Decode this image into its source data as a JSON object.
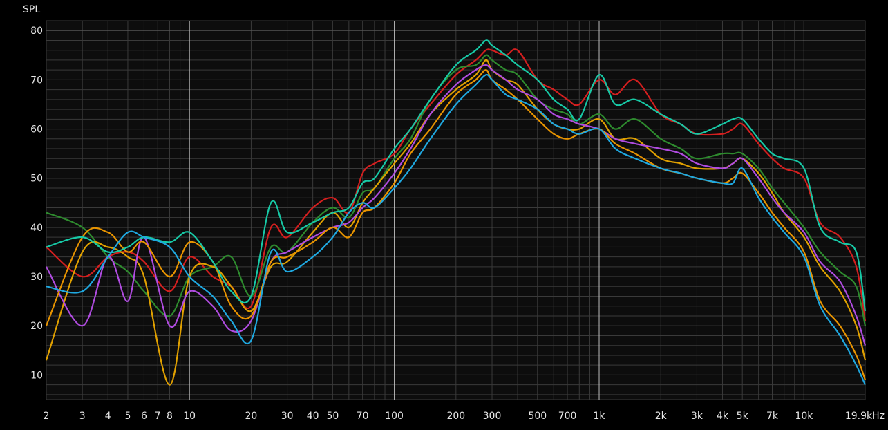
{
  "chart_data": {
    "type": "line",
    "title": "",
    "ylabel": "SPL",
    "xlabel": "",
    "x_scale": "log",
    "xlim": [
      2,
      19900
    ],
    "ylim": [
      5,
      82
    ],
    "grid": true,
    "colors": {
      "background": "#000000",
      "plot_background": "#0d0d0d",
      "grid_minor": "#3a3a3a",
      "grid_major": "#bdbdbd",
      "text": "#e6e6e6"
    },
    "y_ticks": [
      {
        "value": 10,
        "label": "10"
      },
      {
        "value": 20,
        "label": "20"
      },
      {
        "value": 30,
        "label": "30"
      },
      {
        "value": 40,
        "label": "40"
      },
      {
        "value": 50,
        "label": "50"
      },
      {
        "value": 60,
        "label": "60"
      },
      {
        "value": 70,
        "label": "70"
      },
      {
        "value": 80,
        "label": "80"
      }
    ],
    "x_ticks": [
      {
        "value": 2,
        "label": "2"
      },
      {
        "value": 3,
        "label": "3"
      },
      {
        "value": 4,
        "label": "4"
      },
      {
        "value": 5,
        "label": "5"
      },
      {
        "value": 6,
        "label": "6"
      },
      {
        "value": 7,
        "label": "7"
      },
      {
        "value": 8,
        "label": "8"
      },
      {
        "value": 10,
        "label": "10"
      },
      {
        "value": 20,
        "label": "20"
      },
      {
        "value": 30,
        "label": "30"
      },
      {
        "value": 40,
        "label": "40"
      },
      {
        "value": 50,
        "label": "50"
      },
      {
        "value": 70,
        "label": "70"
      },
      {
        "value": 100,
        "label": "100"
      },
      {
        "value": 200,
        "label": "200"
      },
      {
        "value": 300,
        "label": "300"
      },
      {
        "value": 500,
        "label": "500"
      },
      {
        "value": 700,
        "label": "700"
      },
      {
        "value": 1000,
        "label": "1k"
      },
      {
        "value": 2000,
        "label": "2k"
      },
      {
        "value": 3000,
        "label": "3k"
      },
      {
        "value": 4000,
        "label": "4k"
      },
      {
        "value": 5000,
        "label": "5k"
      },
      {
        "value": 7000,
        "label": "7k"
      },
      {
        "value": 10000,
        "label": "10k"
      },
      {
        "value": 19900,
        "label": "19.9kHz"
      }
    ],
    "x": [
      2,
      3,
      4,
      5,
      6,
      8,
      10,
      13,
      16,
      20,
      25,
      30,
      40,
      50,
      60,
      70,
      80,
      100,
      120,
      150,
      200,
      250,
      280,
      300,
      350,
      400,
      500,
      600,
      700,
      800,
      1000,
      1200,
      1500,
      2000,
      2500,
      3000,
      4000,
      4500,
      5000,
      6000,
      7000,
      8000,
      10000,
      12000,
      15000,
      18000,
      19900
    ],
    "series": [
      {
        "color": "#d41f1f",
        "values": [
          36,
          30,
          34,
          35,
          33,
          27,
          34,
          30,
          28,
          24,
          40,
          38,
          44,
          46,
          43,
          51,
          53,
          55,
          60,
          65,
          71,
          74,
          76,
          76,
          75,
          76,
          70,
          68,
          66,
          65,
          70,
          67,
          70,
          63,
          61,
          59,
          59,
          60,
          61,
          57,
          54,
          52,
          50,
          41,
          38,
          32,
          21
        ]
      },
      {
        "color": "#2e8b2e",
        "values": [
          43,
          40,
          34,
          31,
          27,
          22,
          30,
          32,
          34,
          26,
          36,
          35,
          41,
          44,
          42,
          47,
          48,
          54,
          58,
          66,
          72,
          73,
          75,
          74,
          72,
          71,
          66,
          64,
          63,
          61,
          63,
          60,
          62,
          58,
          56,
          54,
          55,
          55,
          55,
          52,
          48,
          45,
          40,
          35,
          31,
          28,
          20
        ]
      },
      {
        "color": "#e0a000",
        "values": [
          13,
          35,
          36,
          34,
          30,
          8,
          30,
          32,
          28,
          23,
          32,
          33,
          39,
          43,
          40,
          45,
          48,
          53,
          57,
          63,
          68,
          71,
          74,
          72,
          70,
          69,
          64,
          61,
          60,
          60,
          62,
          58,
          58,
          54,
          53,
          52,
          52,
          53,
          54,
          51,
          47,
          43,
          38,
          32,
          27,
          20,
          13
        ]
      },
      {
        "color": "#b04ce0",
        "values": [
          32,
          20,
          34,
          25,
          38,
          20,
          27,
          24,
          19,
          21,
          33,
          35,
          38,
          40,
          41,
          44,
          46,
          51,
          56,
          63,
          69,
          72,
          73,
          72,
          70,
          68,
          66,
          63,
          62,
          61,
          60,
          58,
          57,
          56,
          55,
          53,
          52,
          53,
          54,
          50,
          46,
          43,
          39,
          33,
          29,
          22,
          16
        ]
      },
      {
        "color": "#e89400",
        "values": [
          20,
          38,
          39,
          35,
          37,
          30,
          37,
          33,
          24,
          22,
          33,
          34,
          37,
          40,
          38,
          43,
          44,
          49,
          55,
          60,
          67,
          70,
          72,
          70,
          68,
          66,
          62,
          59,
          58,
          59,
          60,
          57,
          55,
          52,
          51,
          50,
          49,
          50,
          51,
          47,
          43,
          40,
          35,
          25,
          20,
          14,
          9
        ]
      },
      {
        "color": "#17c9a6",
        "values": [
          36,
          38,
          35,
          36,
          38,
          37,
          39,
          33,
          27,
          26,
          45,
          39,
          41,
          43,
          44,
          49,
          50,
          56,
          60,
          66,
          73,
          76,
          78,
          77,
          75,
          73,
          70,
          66,
          64,
          62,
          71,
          65,
          66,
          63,
          61,
          59,
          61,
          62,
          62,
          58,
          55,
          54,
          52,
          40,
          37,
          35,
          23
        ]
      },
      {
        "color": "#1fa8e0",
        "values": [
          28,
          27,
          34,
          39,
          38,
          36,
          30,
          26,
          21,
          17,
          35,
          31,
          34,
          38,
          43,
          45,
          44,
          48,
          52,
          58,
          65,
          69,
          71,
          70,
          67,
          66,
          64,
          61,
          60,
          59,
          60,
          56,
          54,
          52,
          51,
          50,
          49,
          49,
          52,
          46,
          42,
          39,
          34,
          24,
          18,
          12,
          8
        ]
      }
    ]
  }
}
